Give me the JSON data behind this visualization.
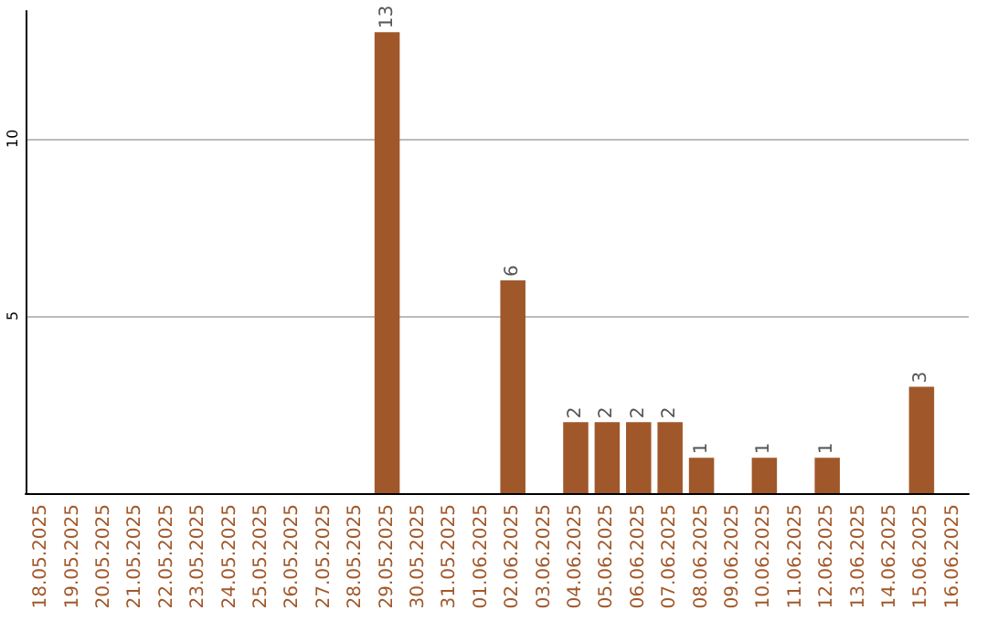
{
  "chart_data": {
    "type": "bar",
    "categories": [
      "18.05.2025",
      "19.05.2025",
      "20.05.2025",
      "21.05.2025",
      "22.05.2025",
      "23.05.2025",
      "24.05.2025",
      "25.05.2025",
      "26.05.2025",
      "27.05.2025",
      "28.05.2025",
      "29.05.2025",
      "30.05.2025",
      "31.05.2025",
      "01.06.2025",
      "02.06.2025",
      "03.06.2025",
      "04.06.2025",
      "05.06.2025",
      "06.06.2025",
      "07.06.2025",
      "08.06.2025",
      "09.06.2025",
      "10.06.2025",
      "11.06.2025",
      "12.06.2025",
      "13.06.2025",
      "14.06.2025",
      "15.06.2025",
      "16.06.2025"
    ],
    "values": [
      0,
      0,
      0,
      0,
      0,
      0,
      0,
      0,
      0,
      0,
      0,
      13,
      0,
      0,
      0,
      6,
      0,
      2,
      2,
      2,
      2,
      1,
      0,
      1,
      0,
      1,
      0,
      0,
      3,
      0
    ],
    "value_labels": [
      null,
      null,
      null,
      null,
      null,
      null,
      null,
      null,
      null,
      null,
      null,
      "13",
      null,
      null,
      null,
      "6",
      null,
      "2",
      "2",
      "2",
      "2",
      "1",
      null,
      "1",
      null,
      "1",
      null,
      null,
      "3",
      null
    ],
    "color": "#a0582a",
    "ylim": [
      0,
      13.6
    ],
    "yticks": [
      5,
      10
    ],
    "grid": "y"
  }
}
